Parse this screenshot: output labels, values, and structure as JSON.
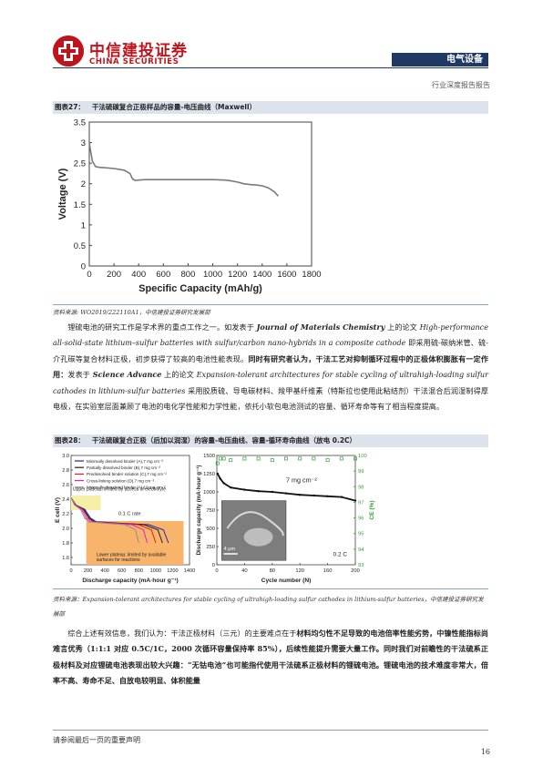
{
  "header": {
    "logo_cn": "中信建投证券",
    "logo_en": "CHINA SECURITIES",
    "sector": "电气设备",
    "report_type": "行业深度报告报告"
  },
  "figure27": {
    "number": "图表27：",
    "title": "干法硫碳复合正极样品的容量-电压曲线（Maxwell）",
    "source": "资料来源: WO2019/222110A1，中信建投证券研究发展部"
  },
  "paragraph1": {
    "part1": "锂硫电池的研究工作是学术界的重点工作之一。如发表于",
    "journal": "Journal of Materials Chemistry",
    "part2": "上的论文",
    "paper_title": "High-performance all-solid-state lithium–sulfur batteries with sulfur/carbon nano-hybrids in a composite cathode",
    "part3": "即采用硫-碳纳米管、硫-介孔碳等复合材料正极，初步获得了较高的电池性能表现。",
    "bold1": "同时有研究者认为，干法工艺对抑制循环过程中的正极体积膨胀有一定作用：",
    "part4": "发表于",
    "journal2": "Science Advance",
    "part5": "上的论文",
    "paper_title2": "Expansion-tolerant architectures for stable cycling of ultrahigh-loading sulfur cathodes in lithium-sulfur batteries",
    "part6": "采用胶质硫、导电碳材料、羧甲基纤维素（特斯拉也使用此粘结剂）干法混合后润湿制得厚电极，在实验室层面兼顾了电池的电化学性能和力学性能，依托小软包电池测试的容量、循环寿命等有了相当程度提高。"
  },
  "figure28": {
    "number": "图表28：",
    "title": "干法硫碳复合正极（后加以润湿）的容量-电压曲线、容量-循环寿命曲线（放电 0.2C）",
    "source_part1": "资料来源：",
    "source_title": "Expansion-tolerant architectures for stable cycling of ultrahigh-loading sulfur cathodes in lithium-sulfur batteries",
    "source_part2": "，中信建投证券研究发展部"
  },
  "paragraph2": {
    "part1": "综合上述有效信息，我们认为：干法正极材料（三元）的主要难点在于",
    "bold1": "材料均匀性不足导致的电池倍率性能劣势，中镍性能指标尚难言优秀（1:1:1 对应 0.5C/1C，2000 次循环容量保持率 85%），后续性能提升需要大量工作。同时我们对前瞻性的干法硫系正极材料及对应锂硫电池表现出较大兴趣：“无钴电池”也可能指代使用干法硫系正极材料的锂硫电池。锂硫电池的技术难度非常大，倍率不高、寿命不足、自放电较明显、体积能量"
  },
  "footer": {
    "note": "请参阅最后一页的重要声明",
    "page": "16"
  },
  "chart_data": [
    {
      "type": "line",
      "xlabel": "Specific Capacity (mAh/g)",
      "ylabel": "Voltage (V)",
      "xlim": [
        0,
        1800
      ],
      "ylim": [
        0,
        3.5
      ],
      "xticks": [
        0,
        200,
        400,
        600,
        800,
        1000,
        1200,
        1400,
        1600,
        1800
      ],
      "yticks": [
        0,
        0.5,
        1,
        1.5,
        2,
        2.5,
        3,
        3.5
      ],
      "grid": false,
      "series": [
        {
          "color": "#7a7a7a",
          "x": [
            0,
            10,
            25,
            50,
            80,
            120,
            200,
            280,
            330,
            350,
            370,
            400,
            450,
            500,
            600,
            700,
            800,
            900,
            1000,
            1100,
            1150,
            1200,
            1250,
            1300,
            1350,
            1400,
            1450,
            1500,
            1530
          ],
          "y": [
            3.0,
            2.8,
            2.55,
            2.42,
            2.4,
            2.39,
            2.37,
            2.33,
            2.25,
            2.12,
            2.08,
            2.09,
            2.1,
            2.1,
            2.1,
            2.1,
            2.1,
            2.1,
            2.1,
            2.09,
            2.07,
            2.04,
            2.0,
            1.98,
            1.97,
            1.95,
            1.9,
            1.8,
            1.7
          ]
        }
      ]
    },
    {
      "type": "line",
      "xlabel": "Discharge capacity (mA·hour g⁻¹)",
      "ylabel": "E cell (V)",
      "xlim": [
        0,
        1400
      ],
      "ylim": [
        1.5,
        3.0
      ],
      "xticks": [
        0,
        200,
        400,
        600,
        800,
        1000,
        1200,
        1400
      ],
      "yticks": [
        1.6,
        1.8,
        2.0,
        2.2,
        2.4,
        2.6,
        2.8,
        3.0
      ],
      "annotations": [
        "Upper plateau: limited by access of electrolyte",
        "0.1 C rate",
        "Lower plateau: limited by available surfaces for reactions"
      ],
      "series": [
        {
          "name": "Minimally dissolved binder (A),7 mg cm⁻²",
          "color": "#2020c8"
        },
        {
          "name": "Partially dissolved binder (B),7 mg cm⁻²",
          "color": "#1e1e1e"
        },
        {
          "name": "Predissolved binder solution (C),7 mg cm⁻²",
          "color": "#e02020"
        },
        {
          "name": "Cross-linking solution (D),7 mg cm⁻²",
          "color": "#e020c8"
        },
        {
          "name": "Minimally-dissolved binder (A),10 mg cm⁻²",
          "color": "#909090"
        }
      ]
    },
    {
      "type": "scatter",
      "xlabel": "Cycle number (N)",
      "ylabel": "Discharge capacity (mA·hour g⁻¹)",
      "ylabel2": "CE (%)",
      "xlim": [
        0,
        200
      ],
      "ylim": [
        0,
        1500
      ],
      "ylim2": [
        93,
        100
      ],
      "xticks": [
        0,
        40,
        80,
        120,
        160,
        200
      ],
      "yticks": [
        0,
        250,
        500,
        750,
        1000,
        1250,
        1500
      ],
      "yticks2": [
        93,
        94,
        95,
        96,
        97,
        98,
        99,
        100
      ],
      "annotations": [
        "7 mg cm⁻²",
        "0.2 C",
        "4 μm"
      ],
      "series": [
        {
          "name": "Discharge capacity",
          "color": "#111111",
          "x": [
            1,
            5,
            10,
            20,
            40,
            60,
            80,
            100,
            120,
            140,
            160,
            180,
            200
          ],
          "y": [
            1250,
            1180,
            1120,
            1060,
            1030,
            1010,
            1000,
            980,
            960,
            950,
            940,
            930,
            880
          ]
        },
        {
          "name": "CE",
          "color": "#3a9a3a",
          "x": [
            1,
            5,
            10,
            20,
            40,
            60,
            80,
            100,
            120,
            140,
            160,
            180,
            200
          ],
          "y": [
            99.5,
            99.8,
            99.8,
            99.7,
            99.8,
            99.8,
            99.7,
            99.8,
            99.8,
            99.8,
            99.7,
            99.8,
            99.8
          ]
        }
      ]
    }
  ]
}
